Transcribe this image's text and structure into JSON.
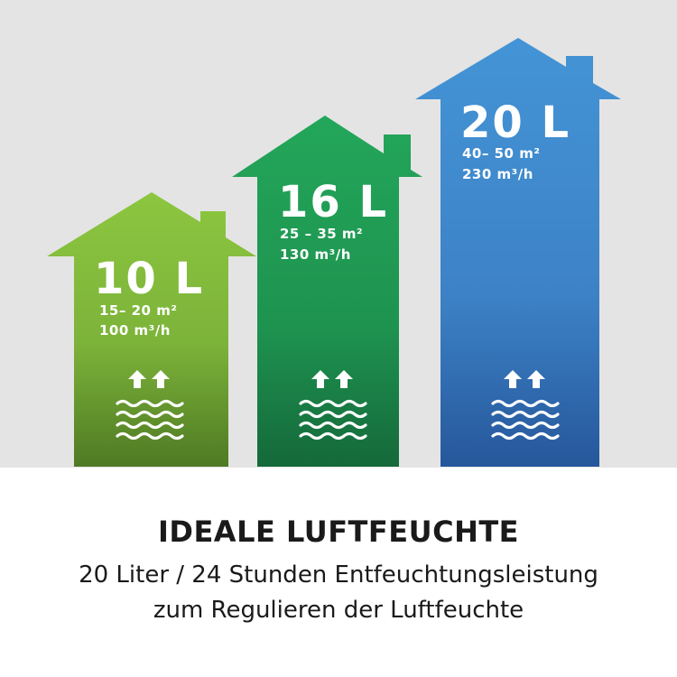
{
  "houses": [
    {
      "capacity": "10 L",
      "area": "15– 20 m²",
      "airflow": "100 m³/h",
      "color_top": "#8cc63f",
      "color_bottom": "#4f7a23"
    },
    {
      "capacity": "16 L",
      "area": "25 – 35 m²",
      "airflow": "130 m³/h",
      "color_top": "#23a65a",
      "color_bottom": "#15693a"
    },
    {
      "capacity": "20 L",
      "area": "40– 50 m²",
      "airflow": "230 m³/h",
      "color_top": "#4190d2",
      "color_bottom": "#26579b"
    }
  ],
  "icons": [
    "arrows-up-icon",
    "water-waves-icon"
  ],
  "headline": "IDEALE LUFTFEUCHTE",
  "subline": [
    "20 Liter / 24 Stunden Entfeuchtungsleistung",
    "zum Regulieren der Luftfeuchte"
  ]
}
